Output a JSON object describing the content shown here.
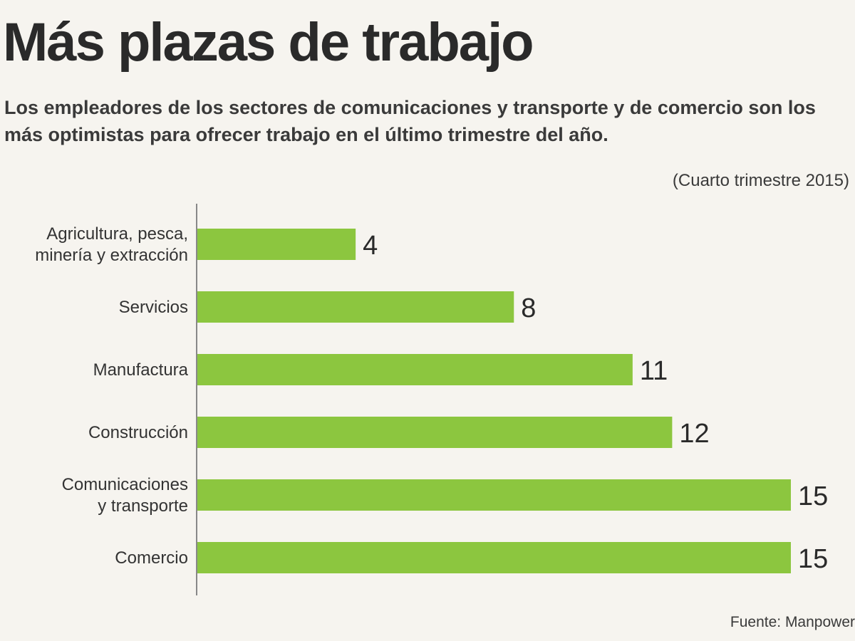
{
  "title": "Más plazas de trabajo",
  "subtitle": "Los empleadores de los sectores de comunicaciones y transporte y de comercio son los más optimistas para ofrecer trabajo en el último trimestre del año.",
  "period": "(Cuarto trimestre 2015)",
  "source": "Fuente: Manpower",
  "colors": {
    "bar": "#8cc63f",
    "axis": "#888888"
  },
  "chart_data": {
    "type": "bar",
    "orientation": "horizontal",
    "categories": [
      [
        "Agricultura, pesca,",
        "minería y extracción"
      ],
      [
        "Servicios"
      ],
      [
        "Manufactura"
      ],
      [
        "Construcción"
      ],
      [
        "Comunicaciones",
        "y transporte"
      ],
      [
        "Comercio"
      ]
    ],
    "values": [
      4,
      8,
      11,
      12,
      15,
      15
    ],
    "xlim": [
      0,
      15
    ],
    "grid": false,
    "data_labels": true
  }
}
